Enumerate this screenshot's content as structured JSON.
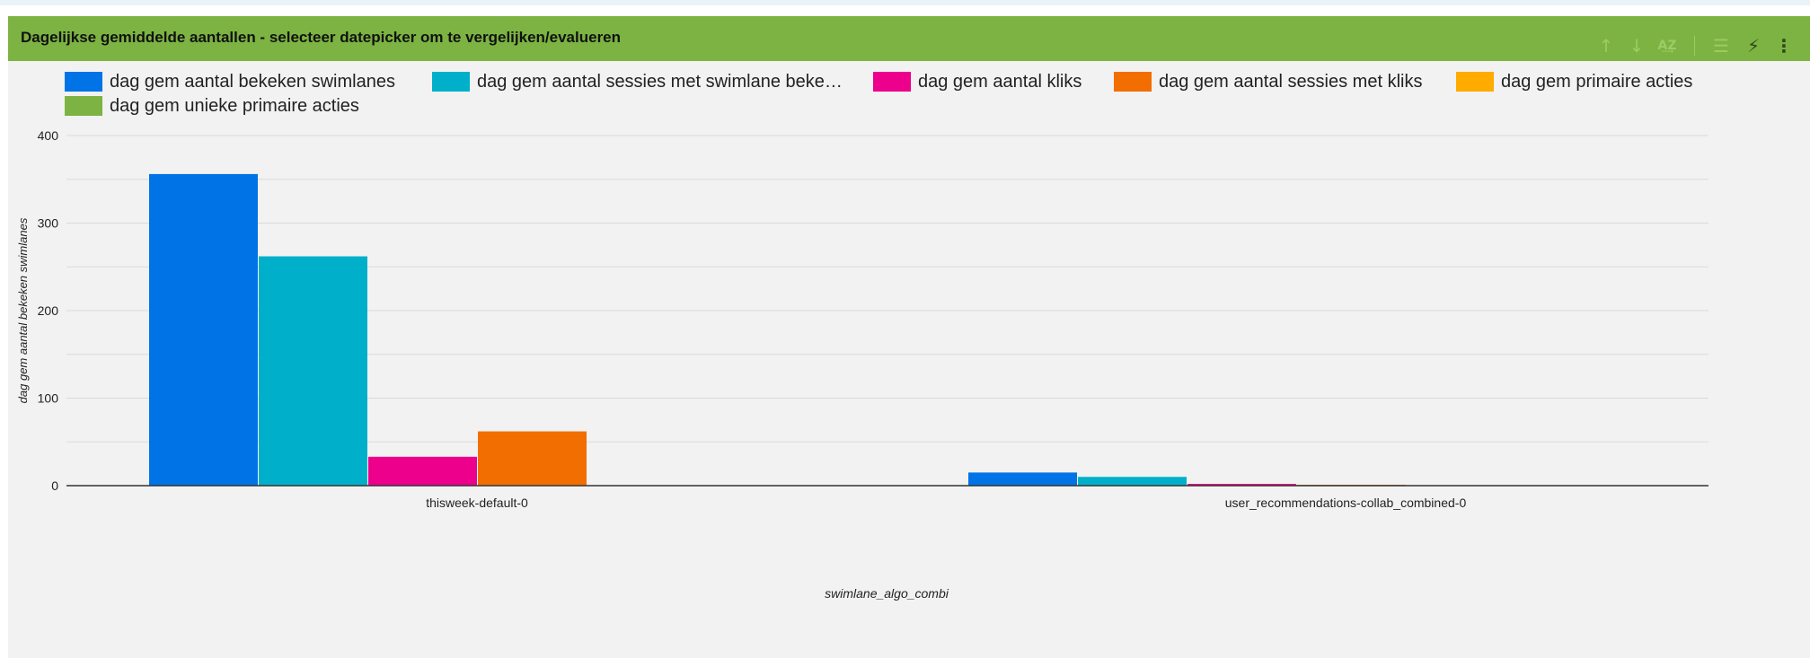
{
  "panel": {
    "title": "Dagelijkse gemiddelde aantallen - selecteer datepicker om te vergelijken/evalueren",
    "toolbar_icons": [
      "arrow-up-icon",
      "arrow-down-icon",
      "sort-az-icon",
      "filter-icon",
      "bolt-icon",
      "more-vert-icon"
    ]
  },
  "chart_data": {
    "type": "bar",
    "title": "",
    "xlabel": "swimlane_algo_combi",
    "ylabel": "dag gem aantal bekeken swimlanes",
    "ylim": [
      0,
      400
    ],
    "yticks": [
      "0",
      "100",
      "200",
      "300",
      "400"
    ],
    "grid": true,
    "legend_position": "top",
    "categories": [
      "thisweek-default-0",
      "user_recommendations-collab_combined-0"
    ],
    "series": [
      {
        "name": "dag gem aantal bekeken swimlanes",
        "label": "dag gem aantal bekeken swimlanes",
        "color": "#0073e6",
        "values": [
          356,
          15
        ]
      },
      {
        "name": "dag gem aantal sessies met swimlane bekeken",
        "label": "dag gem aantal sessies met swimlane beke…",
        "color": "#00b0ca",
        "values": [
          262,
          10
        ]
      },
      {
        "name": "dag gem aantal kliks",
        "label": "dag gem aantal kliks",
        "color": "#ec008c",
        "values": [
          33,
          2
        ]
      },
      {
        "name": "dag gem aantal sessies met kliks",
        "label": "dag gem aantal sessies met kliks",
        "color": "#f26e00",
        "values": [
          62,
          1
        ]
      },
      {
        "name": "dag gem primaire acties",
        "label": "dag gem primaire acties",
        "color": "#ffab00",
        "values": [
          0,
          0
        ]
      },
      {
        "name": "dag gem unieke primaire acties",
        "label": "dag gem unieke primaire acties",
        "color": "#7cb342",
        "values": [
          0,
          0
        ]
      }
    ]
  }
}
